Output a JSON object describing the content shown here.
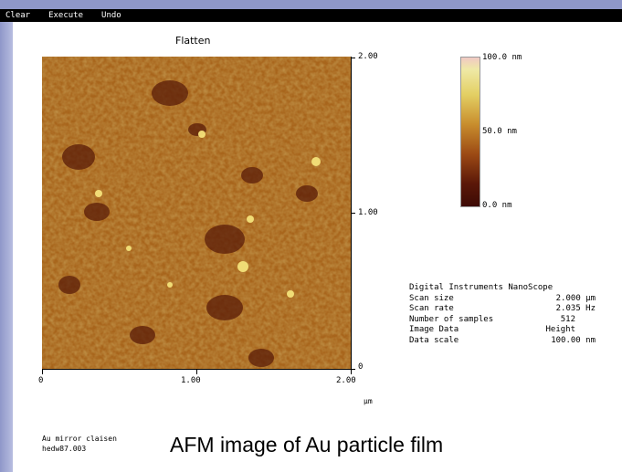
{
  "menu": {
    "items": [
      "Clear",
      "Execute",
      "Undo"
    ]
  },
  "image": {
    "title": "Flatten"
  },
  "axes": {
    "y_ticks": [
      "2.00",
      "1.00",
      "0"
    ],
    "x_ticks": [
      "0",
      "1.00",
      "2.00"
    ],
    "x_unit": "µm"
  },
  "colorbar": {
    "top_label": "100.0 nm",
    "mid_label": "50.0 nm",
    "bottom_label": "0.0 nm"
  },
  "info": {
    "header": "Digital Instruments NanoScope",
    "rows": [
      {
        "label": "Scan size",
        "value": "2.000 µm"
      },
      {
        "label": "Scan rate",
        "value": "2.035 Hz"
      },
      {
        "label": "Number of samples",
        "value": "512"
      },
      {
        "label": "Image Data",
        "value": "Height"
      },
      {
        "label": "Data scale",
        "value": "100.00 nm"
      }
    ]
  },
  "sample": {
    "line1": "Au mirror claisen",
    "line2": "hedw87.003"
  },
  "caption": "AFM image of Au particle film",
  "colors": {
    "menu_strip": "#000000",
    "side_bar": "#8f97c9",
    "afm_base": "#a8651c",
    "afm_dark": "#5a1c08",
    "afm_light": "#f0d860"
  }
}
